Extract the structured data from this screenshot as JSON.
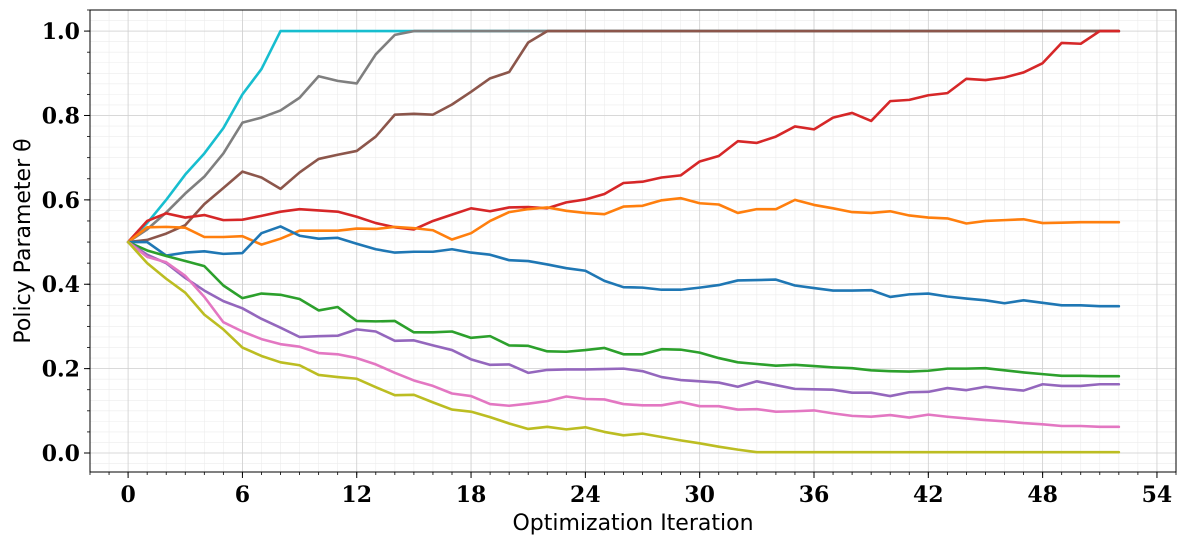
{
  "chart_data": {
    "type": "line",
    "title": "",
    "xlabel": "Optimization Iteration",
    "ylabel": "Policy Parameter θ",
    "xlim": [
      -2,
      55
    ],
    "ylim": [
      -0.045,
      1.05
    ],
    "grid": true,
    "x_ticks": [
      {
        "value": 0,
        "label": "0"
      },
      {
        "value": 6,
        "label": "6"
      },
      {
        "value": 12,
        "label": "12"
      },
      {
        "value": 18,
        "label": "18"
      },
      {
        "value": 24,
        "label": "24"
      },
      {
        "value": 30,
        "label": "30"
      },
      {
        "value": 36,
        "label": "36"
      },
      {
        "value": 42,
        "label": "42"
      },
      {
        "value": 48,
        "label": "48"
      },
      {
        "value": 54,
        "label": "54"
      }
    ],
    "y_ticks": [
      {
        "value": 0.0,
        "label": "0.0"
      },
      {
        "value": 0.2,
        "label": "0.2"
      },
      {
        "value": 0.4,
        "label": "0.4"
      },
      {
        "value": 0.6,
        "label": "0.6"
      },
      {
        "value": 0.8,
        "label": "0.8"
      },
      {
        "value": 1.0,
        "label": "1.0"
      }
    ],
    "x": [
      0,
      1,
      2,
      3,
      4,
      5,
      6,
      7,
      8,
      9,
      10,
      11,
      12,
      13,
      14,
      15,
      16,
      17,
      18,
      19,
      20,
      21,
      22,
      23,
      24,
      25,
      26,
      27,
      28,
      29,
      30,
      31,
      32,
      33,
      34,
      35,
      36,
      37,
      38,
      39,
      40,
      41,
      42,
      43,
      44,
      45,
      46,
      47,
      48,
      49,
      50,
      51,
      52
    ],
    "series": [
      {
        "color": "#17becf",
        "values": [
          0.5,
          0.545,
          0.6,
          0.66,
          0.71,
          0.77,
          0.85,
          0.91,
          1.0,
          1.0,
          1.0,
          1.0,
          1.0,
          1.0,
          1.0,
          1.0,
          1.0,
          1.0,
          1.0,
          1.0,
          1.0,
          1.0,
          1.0,
          1.0,
          1.0,
          1.0,
          1.0,
          1.0,
          1.0,
          1.0,
          1.0,
          1.0,
          1.0,
          1.0,
          1.0,
          1.0,
          1.0,
          1.0,
          1.0,
          1.0,
          1.0,
          1.0,
          1.0,
          1.0,
          1.0,
          1.0,
          1.0,
          1.0,
          1.0,
          1.0,
          1.0,
          1.0,
          1.0
        ]
      },
      {
        "color": "#7f7f7f",
        "values": [
          0.5,
          0.53,
          0.57,
          0.615,
          0.655,
          0.71,
          0.783,
          0.795,
          0.812,
          0.842,
          0.893,
          0.882,
          0.876,
          0.945,
          0.991,
          1.0,
          1.0,
          1.0,
          1.0,
          1.0,
          1.0,
          1.0,
          1.0,
          1.0,
          1.0,
          1.0,
          1.0,
          1.0,
          1.0,
          1.0,
          1.0,
          1.0,
          1.0,
          1.0,
          1.0,
          1.0,
          1.0,
          1.0,
          1.0,
          1.0,
          1.0,
          1.0,
          1.0,
          1.0,
          1.0,
          1.0,
          1.0,
          1.0,
          1.0,
          1.0,
          1.0,
          1.0,
          1.0
        ]
      },
      {
        "color": "#8c564b",
        "values": [
          0.5,
          0.505,
          0.52,
          0.54,
          0.59,
          0.628,
          0.667,
          0.653,
          0.626,
          0.665,
          0.697,
          0.707,
          0.716,
          0.75,
          0.802,
          0.804,
          0.802,
          0.826,
          0.856,
          0.888,
          0.903,
          0.973,
          1.0,
          1.0,
          1.0,
          1.0,
          1.0,
          1.0,
          1.0,
          1.0,
          1.0,
          1.0,
          1.0,
          1.0,
          1.0,
          1.0,
          1.0,
          1.0,
          1.0,
          1.0,
          1.0,
          1.0,
          1.0,
          1.0,
          1.0,
          1.0,
          1.0,
          1.0,
          1.0,
          1.0,
          1.0,
          1.0,
          1.0
        ]
      },
      {
        "color": "#d62728",
        "values": [
          0.5,
          0.55,
          0.568,
          0.558,
          0.564,
          0.552,
          0.553,
          0.562,
          0.572,
          0.578,
          0.575,
          0.572,
          0.56,
          0.545,
          0.535,
          0.53,
          0.55,
          0.565,
          0.58,
          0.573,
          0.582,
          0.583,
          0.58,
          0.594,
          0.601,
          0.614,
          0.64,
          0.643,
          0.653,
          0.658,
          0.691,
          0.704,
          0.739,
          0.735,
          0.75,
          0.774,
          0.767,
          0.795,
          0.806,
          0.787,
          0.834,
          0.837,
          0.848,
          0.853,
          0.887,
          0.884,
          0.89,
          0.902,
          0.924,
          0.972,
          0.97,
          1.0,
          1.0
        ]
      },
      {
        "color": "#ff7f0e",
        "values": [
          0.5,
          0.535,
          0.536,
          0.534,
          0.512,
          0.512,
          0.514,
          0.494,
          0.508,
          0.527,
          0.527,
          0.527,
          0.532,
          0.531,
          0.536,
          0.533,
          0.528,
          0.506,
          0.521,
          0.55,
          0.571,
          0.578,
          0.582,
          0.574,
          0.569,
          0.566,
          0.584,
          0.586,
          0.599,
          0.604,
          0.592,
          0.589,
          0.569,
          0.578,
          0.578,
          0.6,
          0.588,
          0.58,
          0.571,
          0.569,
          0.573,
          0.563,
          0.558,
          0.556,
          0.544,
          0.55,
          0.552,
          0.554,
          0.545,
          0.546,
          0.547,
          0.547,
          0.547
        ]
      },
      {
        "color": "#1f77b4",
        "values": [
          0.5,
          0.5,
          0.468,
          0.475,
          0.478,
          0.472,
          0.474,
          0.521,
          0.537,
          0.515,
          0.508,
          0.51,
          0.496,
          0.483,
          0.475,
          0.477,
          0.477,
          0.483,
          0.475,
          0.47,
          0.457,
          0.455,
          0.447,
          0.438,
          0.432,
          0.408,
          0.393,
          0.392,
          0.387,
          0.387,
          0.392,
          0.398,
          0.409,
          0.41,
          0.411,
          0.397,
          0.391,
          0.385,
          0.385,
          0.386,
          0.37,
          0.376,
          0.378,
          0.371,
          0.366,
          0.362,
          0.355,
          0.362,
          0.356,
          0.35,
          0.35,
          0.348,
          0.348
        ]
      },
      {
        "color": "#2ca02c",
        "values": [
          0.5,
          0.48,
          0.467,
          0.455,
          0.443,
          0.397,
          0.367,
          0.378,
          0.375,
          0.365,
          0.338,
          0.346,
          0.313,
          0.312,
          0.313,
          0.286,
          0.286,
          0.288,
          0.273,
          0.277,
          0.255,
          0.254,
          0.241,
          0.24,
          0.244,
          0.249,
          0.234,
          0.234,
          0.246,
          0.245,
          0.238,
          0.225,
          0.215,
          0.211,
          0.207,
          0.209,
          0.206,
          0.203,
          0.201,
          0.196,
          0.194,
          0.193,
          0.195,
          0.2,
          0.2,
          0.201,
          0.196,
          0.191,
          0.187,
          0.183,
          0.183,
          0.182,
          0.182
        ]
      },
      {
        "color": "#9467bd",
        "values": [
          0.5,
          0.47,
          0.45,
          0.415,
          0.385,
          0.36,
          0.343,
          0.318,
          0.297,
          0.275,
          0.277,
          0.278,
          0.293,
          0.288,
          0.266,
          0.267,
          0.255,
          0.244,
          0.222,
          0.209,
          0.21,
          0.19,
          0.197,
          0.198,
          0.198,
          0.199,
          0.2,
          0.194,
          0.18,
          0.173,
          0.17,
          0.167,
          0.157,
          0.17,
          0.161,
          0.152,
          0.151,
          0.15,
          0.143,
          0.143,
          0.135,
          0.144,
          0.145,
          0.154,
          0.149,
          0.157,
          0.152,
          0.148,
          0.163,
          0.159,
          0.159,
          0.163,
          0.163
        ]
      },
      {
        "color": "#e377c2",
        "values": [
          0.5,
          0.465,
          0.452,
          0.42,
          0.37,
          0.31,
          0.288,
          0.27,
          0.258,
          0.252,
          0.237,
          0.234,
          0.225,
          0.21,
          0.19,
          0.172,
          0.159,
          0.141,
          0.135,
          0.116,
          0.112,
          0.117,
          0.123,
          0.134,
          0.128,
          0.127,
          0.116,
          0.113,
          0.113,
          0.121,
          0.111,
          0.111,
          0.103,
          0.104,
          0.098,
          0.099,
          0.101,
          0.094,
          0.088,
          0.086,
          0.09,
          0.084,
          0.091,
          0.086,
          0.082,
          0.078,
          0.075,
          0.071,
          0.068,
          0.064,
          0.064,
          0.062,
          0.062
        ]
      },
      {
        "color": "#bcbd22",
        "values": [
          0.5,
          0.45,
          0.413,
          0.38,
          0.328,
          0.293,
          0.25,
          0.23,
          0.215,
          0.208,
          0.185,
          0.18,
          0.176,
          0.156,
          0.137,
          0.138,
          0.12,
          0.103,
          0.098,
          0.085,
          0.07,
          0.057,
          0.062,
          0.056,
          0.061,
          0.05,
          0.042,
          0.046,
          0.038,
          0.03,
          0.023,
          0.015,
          0.008,
          0.002,
          0.002,
          0.002,
          0.002,
          0.002,
          0.002,
          0.002,
          0.002,
          0.002,
          0.002,
          0.002,
          0.002,
          0.002,
          0.002,
          0.002,
          0.002,
          0.002,
          0.002,
          0.002,
          0.002
        ]
      }
    ]
  }
}
